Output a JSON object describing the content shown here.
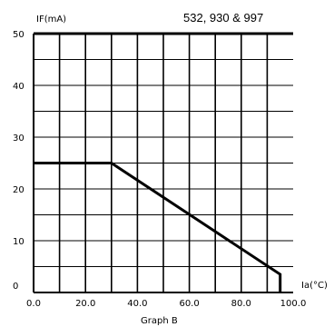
{
  "chart_data": {
    "type": "line",
    "title": "532,  930 & 997",
    "ylabel": "IF(mA)",
    "xlabel_unit": "Ia(°C)",
    "caption": "Graph B",
    "xlim": [
      0,
      100
    ],
    "ylim": [
      0,
      50
    ],
    "x_ticks": [
      {
        "value": 0,
        "label": "0.0"
      },
      {
        "value": 20,
        "label": "20.0"
      },
      {
        "value": 40,
        "label": "40.0"
      },
      {
        "value": 60,
        "label": "60.0"
      },
      {
        "value": 80,
        "label": "80.0"
      },
      {
        "value": 100,
        "label": "100.0"
      }
    ],
    "y_ticks": [
      {
        "value": 0,
        "label": "0"
      },
      {
        "value": 10,
        "label": "10"
      },
      {
        "value": 20,
        "label": "20"
      },
      {
        "value": 30,
        "label": "30"
      },
      {
        "value": 40,
        "label": "40"
      },
      {
        "value": 50,
        "label": "50"
      }
    ],
    "grid": true,
    "x_grid_step": 10,
    "y_grid_step": 5,
    "series": [
      {
        "x": [
          0,
          30,
          95,
          95
        ],
        "y": [
          25,
          25,
          3.5,
          0
        ]
      }
    ]
  }
}
